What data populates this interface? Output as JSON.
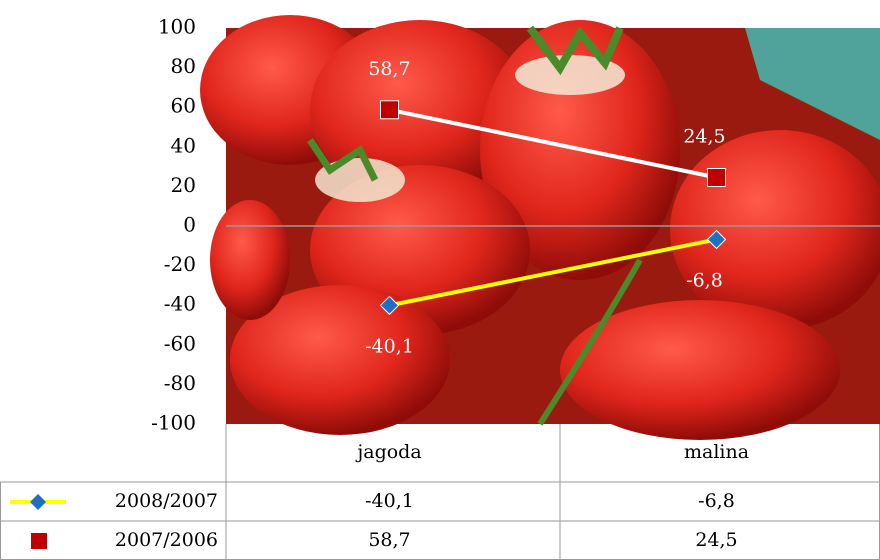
{
  "chart_data": {
    "type": "line",
    "categories": [
      "jagoda",
      "malina"
    ],
    "series": [
      {
        "name": "2008/2007",
        "color": "#ffff00",
        "marker": "diamond",
        "marker_color": "#1f6fc5",
        "values": [
          -40.1,
          -6.8
        ],
        "value_labels": [
          "-40,1",
          "-6,8"
        ]
      },
      {
        "name": "2007/2006",
        "color": "#ffffff",
        "marker": "square",
        "marker_color": "#c00000",
        "values": [
          58.7,
          24.5
        ],
        "value_labels": [
          "58,7",
          "24,5"
        ]
      }
    ],
    "ylim": [
      -100,
      100
    ],
    "yticks": [
      -100,
      -80,
      -60,
      -40,
      -20,
      0,
      20,
      40,
      60,
      80,
      100
    ],
    "data_table": true
  }
}
